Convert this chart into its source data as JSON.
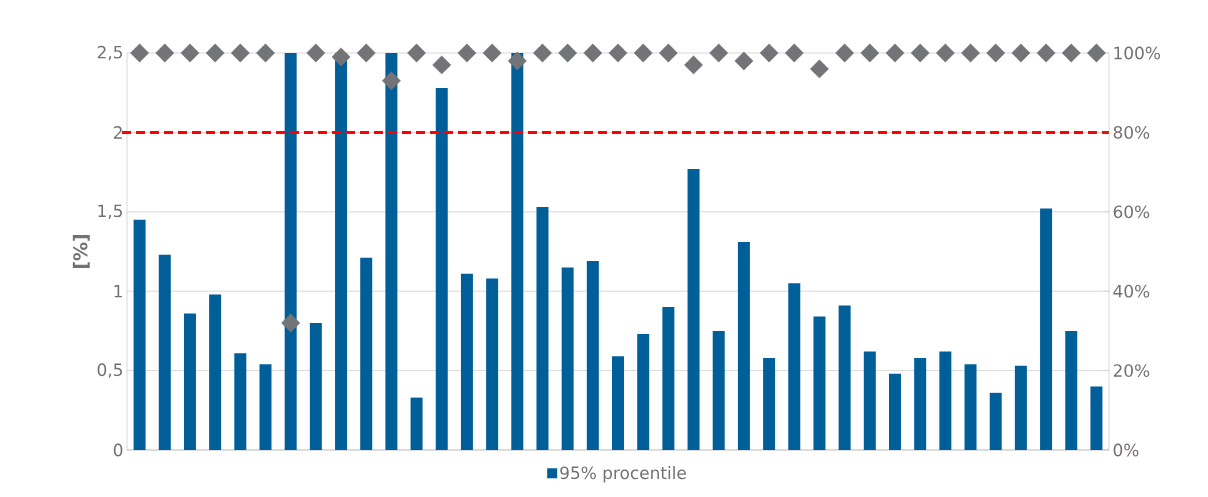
{
  "chart_data": {
    "type": "bar",
    "ylabel": "[%]",
    "categories": [
      null,
      null,
      null,
      null,
      null,
      null,
      null,
      null,
      null,
      null,
      null,
      null,
      null,
      null,
      null,
      null,
      null,
      null,
      null,
      null,
      null,
      null,
      null,
      null,
      null,
      null,
      null,
      null,
      null,
      null,
      null,
      null,
      null,
      null,
      null,
      null,
      null,
      null,
      null
    ],
    "series": [
      {
        "name": "95% procentile",
        "color": "#005f99",
        "values": [
          1.45,
          1.23,
          0.86,
          0.98,
          0.61,
          0.54,
          2.5,
          0.8,
          2.5,
          1.21,
          2.5,
          0.33,
          2.28,
          1.11,
          1.08,
          2.5,
          1.53,
          1.15,
          1.19,
          0.59,
          0.73,
          0.9,
          1.77,
          0.75,
          1.31,
          0.58,
          1.05,
          0.84,
          0.91,
          0.62,
          0.48,
          0.58,
          0.62,
          0.54,
          0.36,
          0.53,
          1.52,
          0.75,
          0.4
        ]
      },
      {
        "type": "scatter",
        "axis": "y2",
        "color": "#737478",
        "marker": "diamond",
        "values": [
          100,
          100,
          100,
          100,
          100,
          100,
          32,
          100,
          99,
          100,
          93,
          100,
          97,
          100,
          100,
          98,
          100,
          100,
          100,
          100,
          100,
          100,
          97,
          100,
          98,
          100,
          100,
          96,
          100,
          100,
          100,
          100,
          100,
          100,
          100,
          100,
          100,
          100,
          100
        ]
      }
    ],
    "ylim": [
      0,
      2.5
    ],
    "yticks": [
      0,
      {
        "value": 0.5,
        "label": "0,5"
      },
      1,
      {
        "value": 1.5,
        "label": "1,5"
      },
      2,
      {
        "value": 2.5,
        "label": "2,5"
      }
    ],
    "y2lim": [
      0,
      100
    ],
    "y2ticks": [
      {
        "value": 0,
        "label": "0%"
      },
      {
        "value": 20,
        "label": "20%"
      },
      {
        "value": 40,
        "label": "40%"
      },
      {
        "value": 60,
        "label": "60%"
      },
      {
        "value": 80,
        "label": "80%"
      },
      {
        "value": 100,
        "label": "100%"
      }
    ],
    "ref_lines": [
      {
        "axis": "y",
        "value": 2,
        "color": "#ff0000",
        "line_style": "dashed"
      }
    ],
    "grid": "y",
    "legend": "bottom"
  }
}
